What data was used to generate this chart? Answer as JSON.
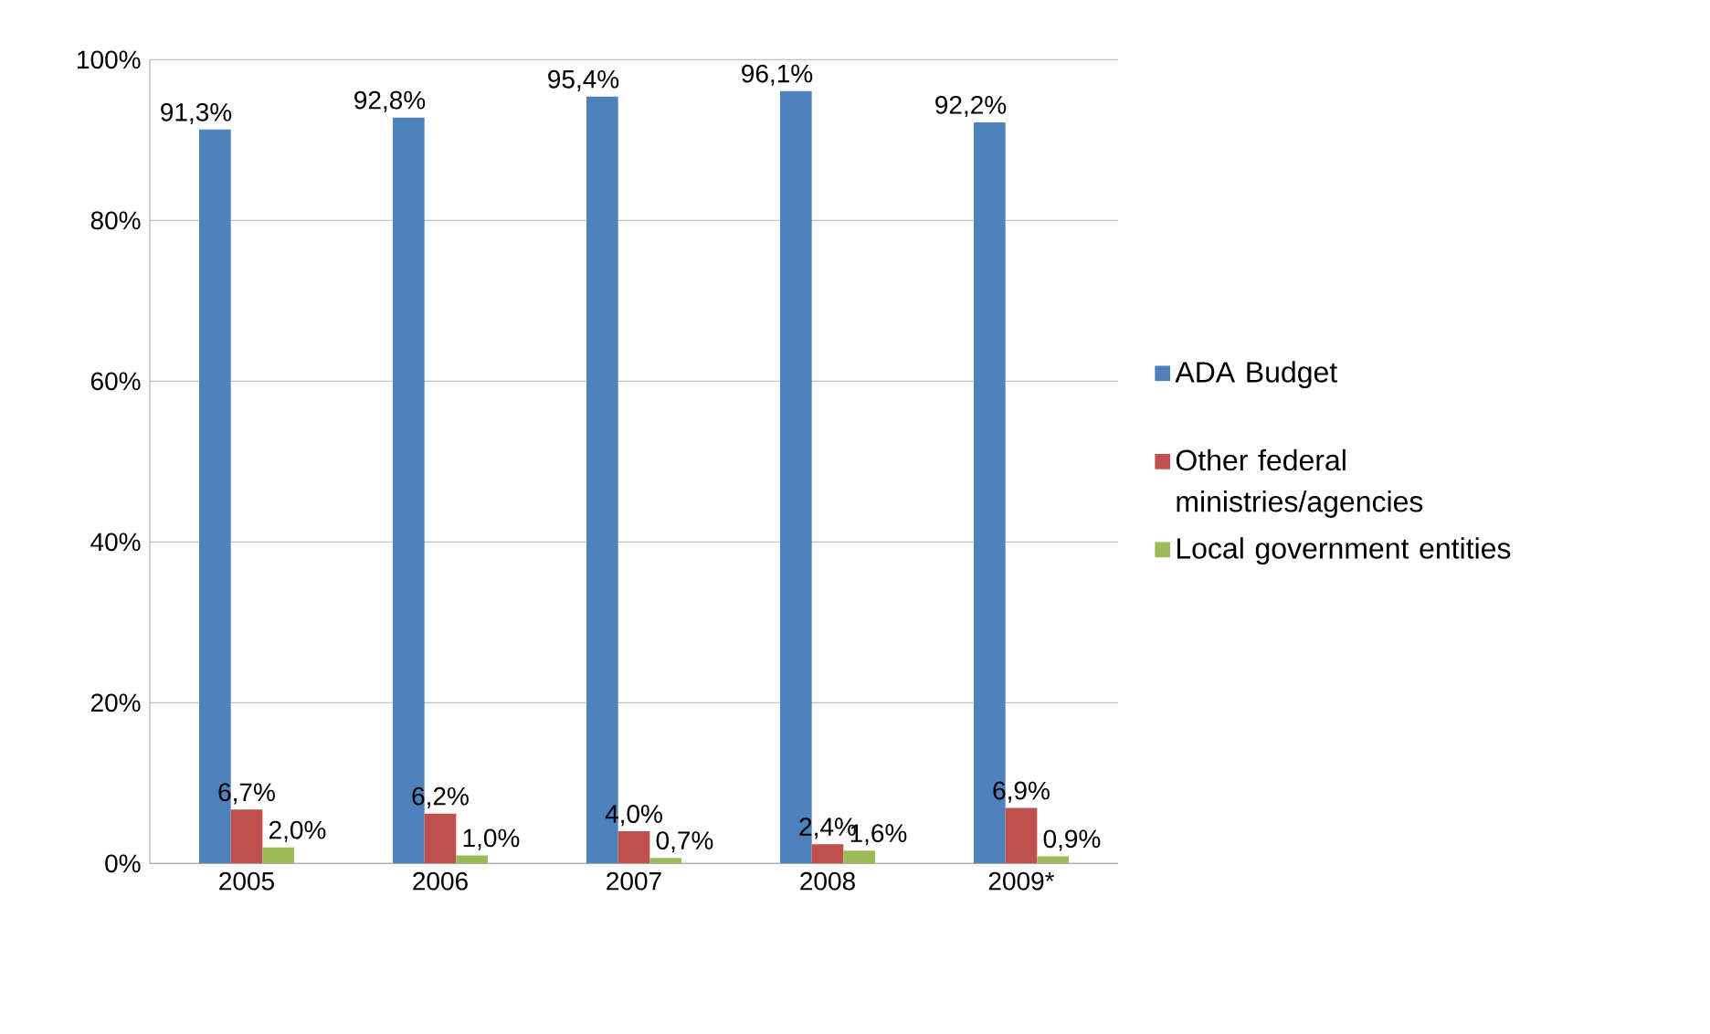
{
  "chart_data": {
    "type": "bar",
    "categories": [
      "2005",
      "2006",
      "2007",
      "2008",
      "2009*"
    ],
    "series": [
      {
        "name": "ADA Budget",
        "color": "#4f81bd",
        "values": [
          91.3,
          92.8,
          95.4,
          96.1,
          92.2
        ],
        "value_labels": [
          "91,3%",
          "92,8%",
          "95,4%",
          "96,1%",
          "92,2%"
        ]
      },
      {
        "name": "Other federal ministries/agencies",
        "color": "#c0504d",
        "values": [
          6.7,
          6.2,
          4.0,
          2.4,
          6.9
        ],
        "value_labels": [
          "6,7%",
          "6,2%",
          "4,0%",
          "2,4%",
          "6,9%"
        ]
      },
      {
        "name": "Local government entities",
        "color": "#9bbb59",
        "values": [
          2.0,
          1.0,
          0.7,
          1.6,
          0.9
        ],
        "value_labels": [
          "2,0%",
          "1,0%",
          "0,7%",
          "1,6%",
          "0,9%"
        ]
      }
    ],
    "ylim": [
      0,
      100
    ],
    "yticks": [
      {
        "value": 0,
        "label": "0%"
      },
      {
        "value": 20,
        "label": "20%"
      },
      {
        "value": 40,
        "label": "40%"
      },
      {
        "value": 60,
        "label": "60%"
      },
      {
        "value": 80,
        "label": "80%"
      },
      {
        "value": 100,
        "label": "100%"
      }
    ],
    "grid": "y",
    "legend": "right"
  }
}
